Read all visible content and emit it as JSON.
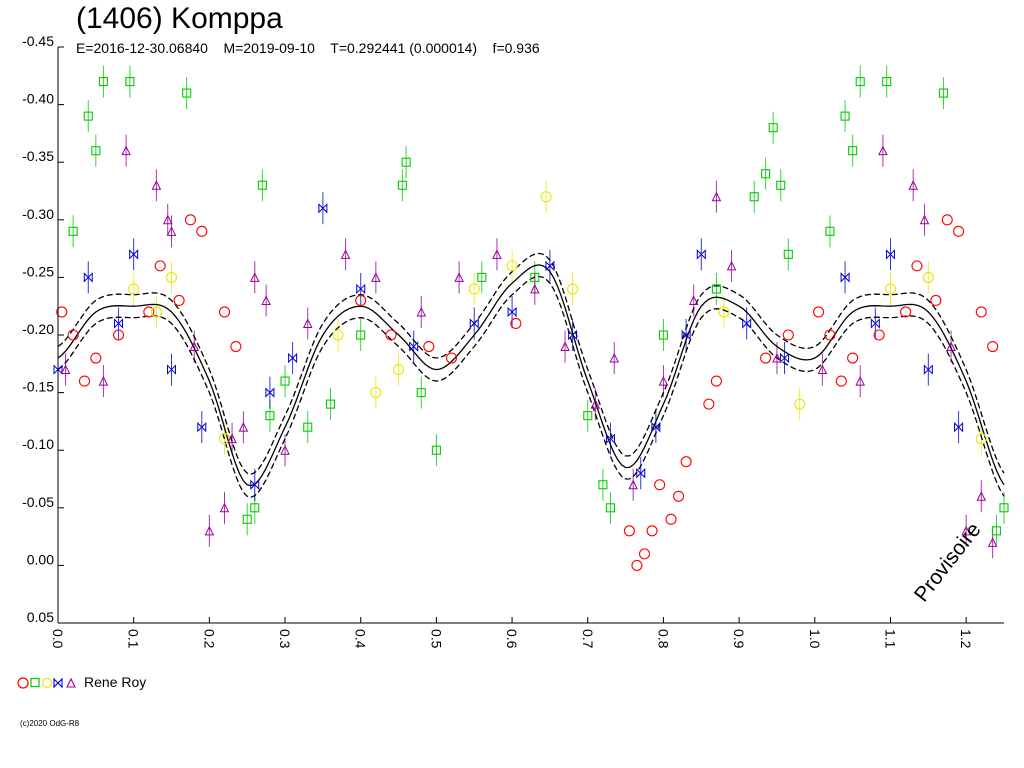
{
  "header": {
    "title": "(1406) Komppa",
    "params": "E=2016-12-30.06840    M=2019-09-10    T=0.292441 (0.000014)    f=0.936"
  },
  "legend": {
    "observer": "Rene Roy"
  },
  "stamp": "Provisoire",
  "copyright": "(c)2020 OdG-R8",
  "chart_data": {
    "type": "scatter",
    "title": "(1406) Komppa",
    "xlabel": "",
    "ylabel": "",
    "xlim": [
      0.0,
      1.25
    ],
    "ylim": [
      -0.45,
      0.05
    ],
    "y_inverted": true,
    "grid": false,
    "x_ticks": [
      0.0,
      0.1,
      0.2,
      0.3,
      0.4,
      0.5,
      0.6,
      0.7,
      0.8,
      0.9,
      1.0,
      1.1,
      1.2
    ],
    "x_tick_labels": [
      "0.0",
      "0.1",
      "0.2",
      "0.3",
      "0.4",
      "0.5",
      "0.6",
      "0.7",
      "0.8",
      "0.9",
      "1.0",
      "1.1",
      "1.2"
    ],
    "y_ticks": [
      -0.45,
      -0.4,
      -0.35,
      -0.3,
      -0.25,
      -0.2,
      -0.15,
      -0.1,
      -0.05,
      0.0,
      0.05
    ],
    "y_tick_labels": [
      "-0.45",
      "-0.40",
      "-0.35",
      "-0.30",
      "-0.25",
      "-0.20",
      "-0.15",
      "-0.10",
      "-0.05",
      "0.00",
      "0.05"
    ],
    "fit_curve": {
      "phase": [
        0.0,
        0.05,
        0.1,
        0.15,
        0.2,
        0.25,
        0.3,
        0.35,
        0.4,
        0.45,
        0.5,
        0.55,
        0.6,
        0.65,
        0.7,
        0.75,
        0.8,
        0.85,
        0.9,
        0.95,
        1.0,
        1.05,
        1.1,
        1.15,
        1.2,
        1.25
      ],
      "mag": [
        -0.18,
        -0.22,
        -0.225,
        -0.22,
        -0.16,
        -0.07,
        -0.12,
        -0.2,
        -0.225,
        -0.2,
        -0.17,
        -0.2,
        -0.245,
        -0.255,
        -0.16,
        -0.085,
        -0.14,
        -0.225,
        -0.225,
        -0.19,
        -0.18,
        -0.22,
        -0.225,
        -0.22,
        -0.16,
        -0.07
      ],
      "envelope": 0.01,
      "color": "#000000"
    },
    "series": [
      {
        "marker": "circle",
        "color": "#ff0000",
        "points": [
          [
            0.005,
            -0.22
          ],
          [
            0.02,
            -0.2
          ],
          [
            0.035,
            -0.16
          ],
          [
            0.05,
            -0.18
          ],
          [
            0.08,
            -0.2
          ],
          [
            0.12,
            -0.22
          ],
          [
            0.135,
            -0.26
          ],
          [
            0.16,
            -0.23
          ],
          [
            0.175,
            -0.3
          ],
          [
            0.19,
            -0.29
          ],
          [
            0.22,
            -0.22
          ],
          [
            0.235,
            -0.19
          ],
          [
            0.4,
            -0.23
          ],
          [
            0.44,
            -0.2
          ],
          [
            0.49,
            -0.19
          ],
          [
            0.52,
            -0.18
          ],
          [
            0.605,
            -0.21
          ],
          [
            0.755,
            -0.03
          ],
          [
            0.765,
            0.0
          ],
          [
            0.775,
            -0.01
          ],
          [
            0.785,
            -0.03
          ],
          [
            0.795,
            -0.07
          ],
          [
            0.81,
            -0.04
          ],
          [
            0.82,
            -0.06
          ],
          [
            0.83,
            -0.09
          ],
          [
            0.86,
            -0.14
          ],
          [
            0.87,
            -0.16
          ],
          [
            0.935,
            -0.18
          ],
          [
            0.965,
            -0.2
          ],
          [
            1.005,
            -0.22
          ],
          [
            1.02,
            -0.2
          ],
          [
            1.035,
            -0.16
          ],
          [
            1.05,
            -0.18
          ],
          [
            1.085,
            -0.2
          ],
          [
            1.12,
            -0.22
          ],
          [
            1.135,
            -0.26
          ],
          [
            1.16,
            -0.23
          ],
          [
            1.175,
            -0.3
          ],
          [
            1.19,
            -0.29
          ],
          [
            1.22,
            -0.22
          ],
          [
            1.235,
            -0.19
          ]
        ]
      },
      {
        "marker": "square",
        "color": "#00cc00",
        "points": [
          [
            0.02,
            -0.29
          ],
          [
            0.04,
            -0.39
          ],
          [
            0.05,
            -0.36
          ],
          [
            0.06,
            -0.42
          ],
          [
            0.095,
            -0.42
          ],
          [
            0.17,
            -0.41
          ],
          [
            0.27,
            -0.33
          ],
          [
            0.25,
            -0.04
          ],
          [
            0.26,
            -0.05
          ],
          [
            0.28,
            -0.13
          ],
          [
            0.3,
            -0.16
          ],
          [
            0.33,
            -0.12
          ],
          [
            0.36,
            -0.14
          ],
          [
            0.4,
            -0.2
          ],
          [
            0.455,
            -0.33
          ],
          [
            0.46,
            -0.35
          ],
          [
            0.48,
            -0.15
          ],
          [
            0.5,
            -0.1
          ],
          [
            0.56,
            -0.25
          ],
          [
            0.63,
            -0.25
          ],
          [
            0.7,
            -0.13
          ],
          [
            0.72,
            -0.07
          ],
          [
            0.73,
            -0.05
          ],
          [
            0.8,
            -0.2
          ],
          [
            0.87,
            -0.24
          ],
          [
            0.92,
            -0.32
          ],
          [
            0.935,
            -0.34
          ],
          [
            0.945,
            -0.38
          ],
          [
            0.955,
            -0.33
          ],
          [
            0.965,
            -0.27
          ],
          [
            1.02,
            -0.29
          ],
          [
            1.04,
            -0.39
          ],
          [
            1.05,
            -0.36
          ],
          [
            1.06,
            -0.42
          ],
          [
            1.095,
            -0.42
          ],
          [
            1.17,
            -0.41
          ],
          [
            1.24,
            -0.03
          ],
          [
            1.25,
            -0.05
          ]
        ]
      },
      {
        "marker": "circle",
        "color": "#e8e800",
        "points": [
          [
            0.1,
            -0.24
          ],
          [
            0.13,
            -0.22
          ],
          [
            0.15,
            -0.25
          ],
          [
            0.22,
            -0.11
          ],
          [
            0.37,
            -0.2
          ],
          [
            0.42,
            -0.15
          ],
          [
            0.45,
            -0.17
          ],
          [
            0.55,
            -0.24
          ],
          [
            0.6,
            -0.26
          ],
          [
            0.645,
            -0.32
          ],
          [
            0.68,
            -0.24
          ],
          [
            0.88,
            -0.22
          ],
          [
            0.98,
            -0.14
          ],
          [
            1.1,
            -0.24
          ],
          [
            1.15,
            -0.25
          ],
          [
            1.22,
            -0.11
          ]
        ]
      },
      {
        "marker": "bowtie",
        "color": "#0000cc",
        "points": [
          [
            0.0,
            -0.17
          ],
          [
            0.04,
            -0.25
          ],
          [
            0.08,
            -0.21
          ],
          [
            0.1,
            -0.27
          ],
          [
            0.15,
            -0.17
          ],
          [
            0.19,
            -0.12
          ],
          [
            0.26,
            -0.07
          ],
          [
            0.28,
            -0.15
          ],
          [
            0.31,
            -0.18
          ],
          [
            0.35,
            -0.31
          ],
          [
            0.4,
            -0.24
          ],
          [
            0.47,
            -0.19
          ],
          [
            0.55,
            -0.21
          ],
          [
            0.6,
            -0.22
          ],
          [
            0.65,
            -0.26
          ],
          [
            0.68,
            -0.2
          ],
          [
            0.73,
            -0.11
          ],
          [
            0.77,
            -0.08
          ],
          [
            0.79,
            -0.12
          ],
          [
            0.83,
            -0.2
          ],
          [
            0.85,
            -0.27
          ],
          [
            0.91,
            -0.21
          ],
          [
            0.96,
            -0.18
          ],
          [
            1.04,
            -0.25
          ],
          [
            1.08,
            -0.21
          ],
          [
            1.1,
            -0.27
          ],
          [
            1.15,
            -0.17
          ],
          [
            1.19,
            -0.12
          ]
        ]
      },
      {
        "marker": "triangle",
        "color": "#990099",
        "points": [
          [
            0.01,
            -0.17
          ],
          [
            0.06,
            -0.16
          ],
          [
            0.09,
            -0.36
          ],
          [
            0.13,
            -0.33
          ],
          [
            0.145,
            -0.3
          ],
          [
            0.15,
            -0.29
          ],
          [
            0.18,
            -0.19
          ],
          [
            0.2,
            -0.03
          ],
          [
            0.22,
            -0.05
          ],
          [
            0.23,
            -0.11
          ],
          [
            0.245,
            -0.12
          ],
          [
            0.26,
            -0.25
          ],
          [
            0.275,
            -0.23
          ],
          [
            0.3,
            -0.1
          ],
          [
            0.33,
            -0.21
          ],
          [
            0.38,
            -0.27
          ],
          [
            0.42,
            -0.25
          ],
          [
            0.48,
            -0.22
          ],
          [
            0.53,
            -0.25
          ],
          [
            0.58,
            -0.27
          ],
          [
            0.63,
            -0.24
          ],
          [
            0.67,
            -0.19
          ],
          [
            0.71,
            -0.14
          ],
          [
            0.735,
            -0.18
          ],
          [
            0.76,
            -0.07
          ],
          [
            0.8,
            -0.16
          ],
          [
            0.84,
            -0.23
          ],
          [
            0.87,
            -0.32
          ],
          [
            0.89,
            -0.26
          ],
          [
            0.95,
            -0.18
          ],
          [
            1.01,
            -0.17
          ],
          [
            1.06,
            -0.16
          ],
          [
            1.09,
            -0.36
          ],
          [
            1.13,
            -0.33
          ],
          [
            1.145,
            -0.3
          ],
          [
            1.18,
            -0.19
          ],
          [
            1.2,
            -0.03
          ],
          [
            1.22,
            -0.06
          ],
          [
            1.235,
            -0.02
          ]
        ]
      }
    ]
  }
}
